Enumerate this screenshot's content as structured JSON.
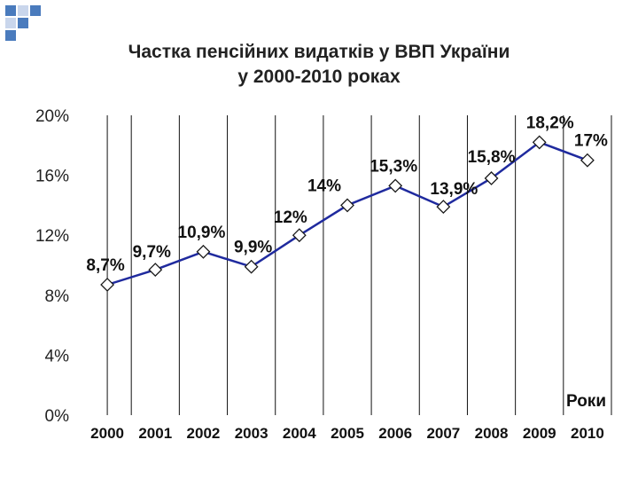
{
  "chart_data": {
    "type": "line",
    "title_line1": "Частка пенсійних видатків у ВВП України",
    "title_line2": "у 2000-2010 роках",
    "xlabel": "Роки",
    "ylabel": "",
    "categories": [
      "2000",
      "2001",
      "2002",
      "2003",
      "2004",
      "2005",
      "2006",
      "2007",
      "2008",
      "2009",
      "2010"
    ],
    "series": [
      {
        "values": [
          8.7,
          9.7,
          10.9,
          9.9,
          12.0,
          14.0,
          15.3,
          13.9,
          15.8,
          18.2,
          17.0
        ],
        "labels": [
          "8,7%",
          "9,7%",
          "10,9%",
          "9,9%",
          "12%",
          "14%",
          "15,3%",
          "13,9%",
          "15,8%",
          "18,2%",
          "17%"
        ]
      }
    ],
    "ylim": [
      0,
      20
    ],
    "yticks": [
      0,
      4,
      8,
      12,
      16,
      20
    ],
    "ytick_labels": [
      "0%",
      "4%",
      "8%",
      "12%",
      "16%",
      "20%"
    ],
    "grid": "vertical",
    "line_color": "#1f2a9e",
    "marker": "diamond"
  }
}
